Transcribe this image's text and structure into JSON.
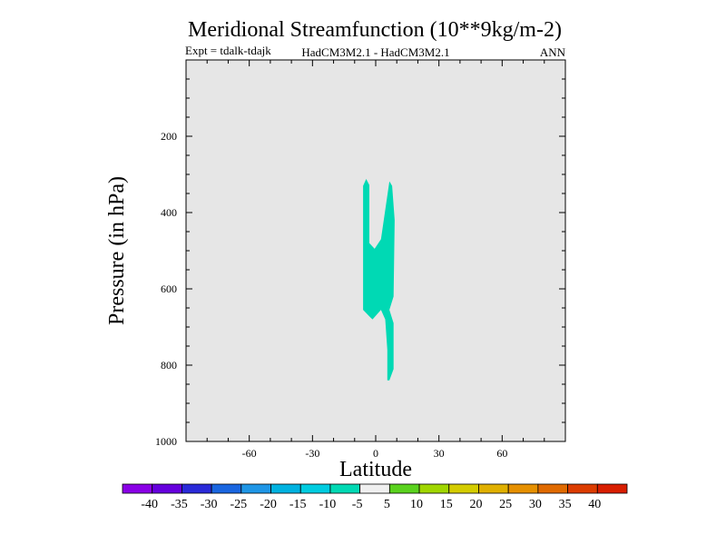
{
  "chart_data": {
    "type": "heatmap",
    "title": "Meridional Streamfunction (10**9kg/m-2)",
    "subtitle_left": "Expt = tdalk-tdajk",
    "subtitle_center": "HadCM3M2.1 - HadCM3M2.1",
    "subtitle_right": "ANN",
    "xlabel": "Latitude",
    "ylabel": "Pressure (in hPa)",
    "xlim": [
      -90,
      90
    ],
    "ylim": [
      1000,
      0
    ],
    "x_ticks": [
      -60,
      -30,
      0,
      30,
      60
    ],
    "y_ticks": [
      200,
      400,
      600,
      800,
      1000
    ],
    "background_color": "#e6e6e6",
    "contour_regions": [
      {
        "level": "-10 to -5",
        "color": "#00d9b4",
        "polygon_lat_p": [
          [
            -4.5,
            312
          ],
          [
            -3.0,
            328
          ],
          [
            -3.0,
            480
          ],
          [
            -0.5,
            495
          ],
          [
            2.5,
            470
          ],
          [
            6.5,
            318
          ],
          [
            7.8,
            330
          ],
          [
            9.0,
            420
          ],
          [
            8.5,
            620
          ],
          [
            6.5,
            655
          ],
          [
            8.5,
            690
          ],
          [
            8.5,
            810
          ],
          [
            6.5,
            840
          ],
          [
            5.5,
            840
          ],
          [
            5.5,
            760
          ],
          [
            4.5,
            680
          ],
          [
            2.5,
            655
          ],
          [
            -1.5,
            680
          ],
          [
            -2.5,
            675
          ],
          [
            -6.0,
            655
          ],
          [
            -6.0,
            330
          ]
        ]
      }
    ],
    "colorbar": {
      "labels": [
        "-40",
        "-35",
        "-30",
        "-25",
        "-20",
        "-15",
        "-10",
        "-5",
        "5",
        "10",
        "15",
        "20",
        "25",
        "30",
        "35",
        "40"
      ],
      "colors": [
        "#8a00e6",
        "#6600dd",
        "#2a2ad8",
        "#1a66e0",
        "#1f96e6",
        "#00b2e0",
        "#00cce0",
        "#00d9b4",
        "#f0f0f0",
        "#5ad21e",
        "#a0d600",
        "#d4cc00",
        "#e0b000",
        "#e69000",
        "#e06a00",
        "#dc3c00",
        "#d81e00"
      ]
    }
  }
}
